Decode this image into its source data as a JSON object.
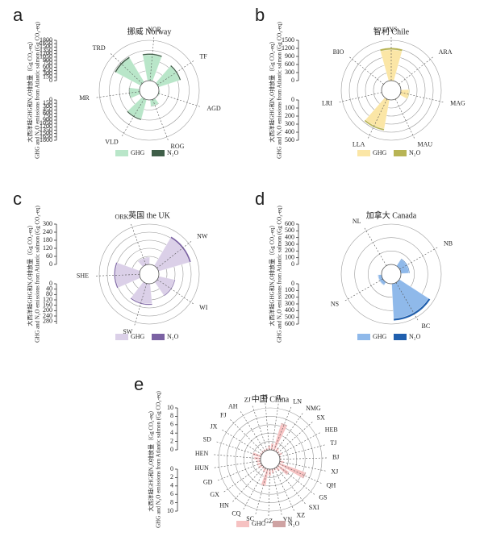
{
  "chart_data": [
    {
      "type": "radial-bar",
      "panel_label": "a",
      "title": "挪威 Norway",
      "ylabel": [
        "大西洋鲑GHG和N₂O排放量（Gg CO₂-eq）",
        "GHG and N₂O emissions from Atlantic salmon (Gg CO₂-eq)"
      ],
      "categories": [
        "NOR",
        "TF",
        "AGD",
        "ROG",
        "VLD",
        "MR",
        "TRD"
      ],
      "series": [
        {
          "name": "GHG",
          "color": "#b9e6c9",
          "values": [
            1150,
            1000,
            50,
            280,
            900,
            450,
            1250
          ]
        },
        {
          "name": "N₂O",
          "color": "#3f5e48",
          "values": [
            60,
            55,
            5,
            20,
            50,
            30,
            65
          ]
        }
      ],
      "ylim": [
        0,
        1800
      ],
      "yticks": [
        0,
        150,
        300,
        450,
        600,
        750,
        900,
        1050,
        1200,
        1350,
        1500,
        1650,
        1800
      ],
      "y2lim": [
        0,
        1800
      ],
      "y2ticks": [
        0,
        150,
        300,
        450,
        600,
        750,
        900,
        1050,
        1200,
        1350,
        1500,
        1650,
        1800
      ]
    },
    {
      "type": "radial-bar",
      "panel_label": "b",
      "title": "智利 Chile",
      "ylabel": [
        "大西洋鲑GHG和N₂O排放量（Gg CO₂-eq）",
        "GHG and N₂O emissions from Atlantic salmon (Gg CO₂-eq)"
      ],
      "categories": [
        "AYS",
        "ARA",
        "MAG",
        "MAU",
        "LLA",
        "LRI",
        "BIO"
      ],
      "series": [
        {
          "name": "GHG",
          "color": "#fbe6a6",
          "values": [
            1150,
            20,
            300,
            20,
            1100,
            10,
            10
          ]
        },
        {
          "name": "N₂O",
          "color": "#b8b455",
          "values": [
            70,
            2,
            20,
            2,
            60,
            1,
            1
          ]
        }
      ],
      "ylim": [
        0,
        1500
      ],
      "yticks": [
        0,
        300,
        600,
        900,
        1200,
        1500
      ],
      "y2lim": [
        0,
        500
      ],
      "y2ticks": [
        0,
        100,
        200,
        300,
        400,
        500
      ]
    },
    {
      "type": "radial-bar",
      "panel_label": "c",
      "title": "英国 the UK",
      "ylabel": [
        "大西洋鲑GHG和N₂O排放量（Gg CO₂-eq）",
        "GHG and N₂O emissions from Atlantic salmon (Gg CO₂-eq)"
      ],
      "categories": [
        "ORK",
        "NW",
        "WI",
        "SW",
        "SHE"
      ],
      "series": [
        {
          "name": "GHG",
          "color": "#dbd0e8",
          "values": [
            50,
            240,
            120,
            150,
            180
          ]
        },
        {
          "name": "N₂O",
          "color": "#7b62a3",
          "values": [
            3,
            12,
            6,
            8,
            9
          ]
        }
      ],
      "ylim": [
        0,
        300
      ],
      "yticks": [
        0,
        60,
        120,
        180,
        240,
        300
      ],
      "y2lim": [
        0,
        300
      ],
      "y2ticks": [
        0,
        40,
        80,
        120,
        160,
        200,
        240,
        280
      ]
    },
    {
      "type": "radial-bar",
      "panel_label": "d",
      "title": "加拿大 Canada",
      "ylabel": [
        "大西洋鲑GHG和N₂O排放量（Gg CO₂-eq）",
        "GHG and N₂O emissions from Atlantic salmon (Gg CO₂-eq)"
      ],
      "categories": [
        "NL",
        "NB",
        "BC",
        "NS"
      ],
      "series": [
        {
          "name": "GHG",
          "color": "#8fb9ea",
          "values": [
            0,
            120,
            520,
            50
          ]
        },
        {
          "name": "N₂O",
          "color": "#1f5fae",
          "values": [
            0,
            10,
            30,
            4
          ]
        }
      ],
      "ylim": [
        0,
        600
      ],
      "yticks": [
        0,
        100,
        200,
        300,
        400,
        500,
        600
      ],
      "y2lim": [
        0,
        600
      ],
      "y2ticks": [
        0,
        100,
        200,
        300,
        400,
        500,
        600
      ]
    },
    {
      "type": "radial-bar",
      "panel_label": "e",
      "title": "中国 China",
      "ylabel": [
        "大西洋鲑GHG和N₂O排放量（Gg CO₂-eq）",
        "GHG and N₂O emissions from Atlantic salmon (Gg CO₂-eq)"
      ],
      "categories": [
        "JS",
        "JL",
        "LN",
        "NMG",
        "SX",
        "HEB",
        "TJ",
        "BJ",
        "XJ",
        "QH",
        "GS",
        "SXI",
        "XZ",
        "YN",
        "GZ",
        "SC",
        "CQ",
        "HN",
        "GX",
        "GD",
        "HUN",
        "HEN",
        "SD",
        "JX",
        "FJ",
        "AH",
        "ZJ"
      ],
      "series": [
        {
          "name": "GHG",
          "color": "#f6c2c2",
          "values": [
            1,
            1.5,
            6.5,
            1,
            0.5,
            0.8,
            0.3,
            0.3,
            1,
            6.5,
            3,
            1,
            0.5,
            1,
            1.5,
            4,
            1,
            0.5,
            1,
            1,
            1,
            1.5,
            2,
            0.5,
            0.5,
            0.5,
            0.5
          ]
        },
        {
          "name": "N₂O",
          "color": "#cfa3a3",
          "values": [
            0.05,
            0.08,
            0.3,
            0.05,
            0.03,
            0.04,
            0.02,
            0.02,
            0.05,
            0.3,
            0.15,
            0.05,
            0.03,
            0.05,
            0.08,
            0.2,
            0.05,
            0.03,
            0.05,
            0.05,
            0.05,
            0.08,
            0.1,
            0.03,
            0.03,
            0.03,
            0.03
          ]
        }
      ],
      "ylim": [
        0,
        10
      ],
      "yticks": [
        0,
        2,
        4,
        6,
        8,
        10
      ],
      "y2lim": [
        0,
        10
      ],
      "y2ticks": [
        0,
        2,
        4,
        6,
        8,
        10
      ]
    }
  ]
}
